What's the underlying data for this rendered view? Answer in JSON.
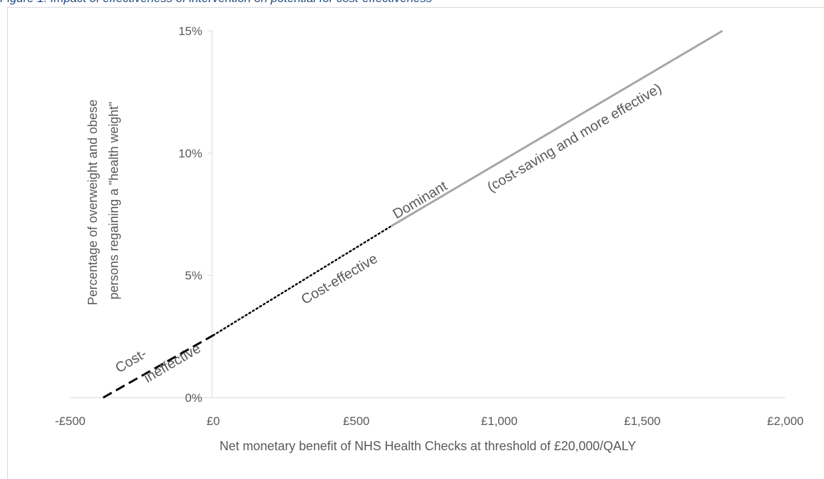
{
  "caption": "Figure 1: Impact of effectiveness of intervention on potential for cost-effectiveness",
  "chart_data": {
    "type": "line",
    "title": "",
    "xlabel": "Net monetary benefit of NHS Health Checks at threshold of £20,000/QALY",
    "ylabel": "Percentage of overweight and obese persons regaining a \"health weight\"",
    "xlim": [
      -500,
      2000
    ],
    "ylim": [
      0,
      15
    ],
    "x_ticks": [
      "-£500",
      "£0",
      "£500",
      "£1,000",
      "£1,500",
      "£2,000"
    ],
    "y_ticks": [
      "0%",
      "5%",
      "10%",
      "15%"
    ],
    "grid": false,
    "series": [
      {
        "name": "Cost-ineffective",
        "style": "dashed",
        "color": "#000000",
        "x": [
          -385,
          0
        ],
        "y": [
          0,
          2.55
        ]
      },
      {
        "name": "Cost-effective",
        "style": "dotted",
        "color": "#000000",
        "x": [
          0,
          620
        ],
        "y": [
          2.55,
          7.0
        ]
      },
      {
        "name": "Dominant (cost-saving and more effective)",
        "style": "solid",
        "color": "#A6A6A6",
        "x": [
          620,
          1780
        ],
        "y": [
          7.0,
          15.0
        ]
      }
    ],
    "annotations": [
      {
        "text": "Cost-",
        "x": -330,
        "y": 1.0
      },
      {
        "text": "ineffective",
        "x": -230,
        "y": 0.6
      },
      {
        "text": "Cost-effective",
        "x": 320,
        "y": 3.8
      },
      {
        "text": "Dominant",
        "x": 640,
        "y": 7.3
      },
      {
        "text": "(cost-saving and more effective)",
        "x": 970,
        "y": 8.4
      }
    ]
  }
}
